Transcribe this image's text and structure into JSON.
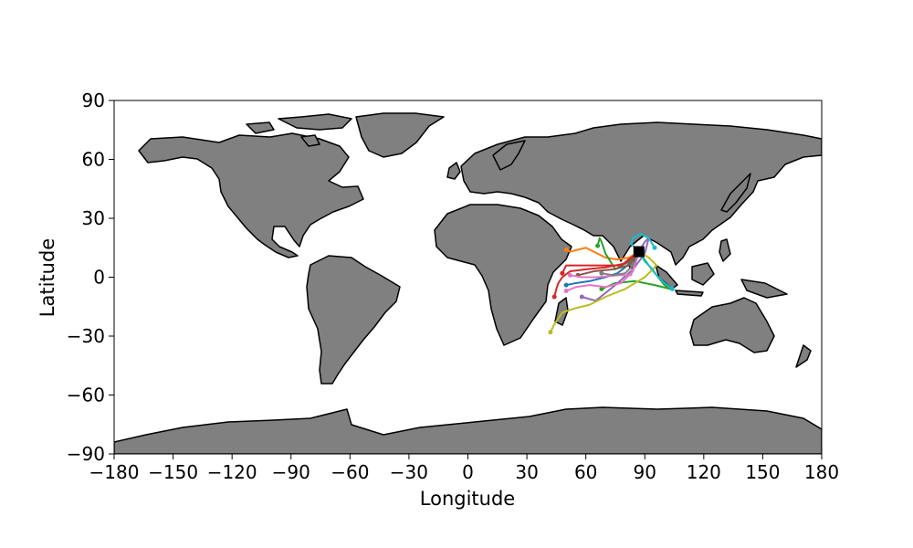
{
  "chart_data": {
    "type": "map",
    "xlabel": "Longitude",
    "ylabel": "Latitude",
    "xlim": [
      -180,
      180
    ],
    "ylim": [
      -90,
      90
    ],
    "xticks": [
      "−180",
      "−150",
      "−120",
      "−90",
      "−60",
      "−30",
      "0",
      "30",
      "60",
      "90",
      "120",
      "150",
      "180"
    ],
    "yticks": [
      "−90",
      "−60",
      "−30",
      "0",
      "30",
      "60",
      "90"
    ],
    "land_color": "#808080",
    "release_site": {
      "lon": 87,
      "lat": 13
    },
    "tracks": [
      {
        "color": "#1f77b4",
        "points": [
          [
            87,
            13
          ],
          [
            84,
            9
          ],
          [
            80,
            5
          ],
          [
            76,
            2
          ],
          [
            70,
            0
          ],
          [
            62,
            -2
          ],
          [
            55,
            -3
          ],
          [
            50,
            -4
          ]
        ]
      },
      {
        "color": "#ff7f0e",
        "points": [
          [
            87,
            13
          ],
          [
            82,
            10
          ],
          [
            76,
            9
          ],
          [
            70,
            10
          ],
          [
            64,
            13
          ],
          [
            60,
            15
          ],
          [
            56,
            14
          ],
          [
            52,
            13
          ],
          [
            50,
            14
          ]
        ]
      },
      {
        "color": "#2ca02c",
        "points": [
          [
            87,
            13
          ],
          [
            82,
            8
          ],
          [
            75,
            4
          ],
          [
            70,
            12
          ],
          [
            68,
            18
          ],
          [
            67,
            20
          ],
          [
            66,
            16
          ]
        ]
      },
      {
        "color": "#2ca02c",
        "points": [
          [
            87,
            13
          ],
          [
            92,
            6
          ],
          [
            96,
            1
          ],
          [
            100,
            -4
          ],
          [
            103,
            -6
          ],
          [
            95,
            -4
          ],
          [
            85,
            -2
          ],
          [
            75,
            -3
          ],
          [
            68,
            -6
          ]
        ]
      },
      {
        "color": "#d62728",
        "points": [
          [
            87,
            13
          ],
          [
            80,
            7
          ],
          [
            70,
            5
          ],
          [
            60,
            4
          ],
          [
            52,
            3
          ],
          [
            48,
            0
          ],
          [
            46,
            -3
          ],
          [
            45,
            -6
          ],
          [
            44,
            -10
          ]
        ]
      },
      {
        "color": "#d62728",
        "points": [
          [
            87,
            13
          ],
          [
            78,
            6
          ],
          [
            68,
            6
          ],
          [
            58,
            6
          ],
          [
            50,
            6
          ],
          [
            48,
            2
          ]
        ]
      },
      {
        "color": "#9467bd",
        "points": [
          [
            87,
            13
          ],
          [
            90,
            18
          ],
          [
            92,
            20
          ],
          [
            90,
            12
          ],
          [
            84,
            4
          ],
          [
            75,
            -4
          ],
          [
            65,
            -12
          ],
          [
            58,
            -10
          ]
        ]
      },
      {
        "color": "#8c564b",
        "points": [
          [
            87,
            13
          ],
          [
            82,
            6
          ],
          [
            74,
            4
          ],
          [
            64,
            3
          ],
          [
            56,
            1
          ]
        ]
      },
      {
        "color": "#e377c2",
        "points": [
          [
            87,
            13
          ],
          [
            84,
            3
          ],
          [
            78,
            -3
          ],
          [
            70,
            -5
          ],
          [
            62,
            -4
          ],
          [
            55,
            -5
          ],
          [
            50,
            -7
          ]
        ]
      },
      {
        "color": "#e377c2",
        "points": [
          [
            87,
            13
          ],
          [
            83,
            1
          ],
          [
            76,
            1
          ],
          [
            66,
            0
          ],
          [
            58,
            0
          ],
          [
            52,
            1
          ]
        ]
      },
      {
        "color": "#7f7f7f",
        "points": [
          [
            87,
            13
          ],
          [
            84,
            6
          ],
          [
            80,
            2
          ],
          [
            74,
            1
          ],
          [
            68,
            2
          ]
        ]
      },
      {
        "color": "#bcbd22",
        "points": [
          [
            87,
            13
          ],
          [
            92,
            10
          ],
          [
            96,
            6
          ],
          [
            90,
            0
          ],
          [
            80,
            -6
          ],
          [
            70,
            -10
          ],
          [
            62,
            -14
          ],
          [
            54,
            -16
          ],
          [
            48,
            -18
          ],
          [
            44,
            -24
          ],
          [
            42,
            -28
          ]
        ]
      },
      {
        "color": "#17becf",
        "points": [
          [
            87,
            13
          ],
          [
            90,
            8
          ],
          [
            94,
            4
          ],
          [
            96,
            1
          ],
          [
            100,
            -3
          ],
          [
            104,
            -6
          ]
        ]
      },
      {
        "color": "#17becf",
        "points": [
          [
            87,
            13
          ],
          [
            83,
            17
          ],
          [
            84,
            20
          ],
          [
            88,
            22
          ],
          [
            92,
            20
          ],
          [
            95,
            15
          ]
        ]
      }
    ]
  }
}
